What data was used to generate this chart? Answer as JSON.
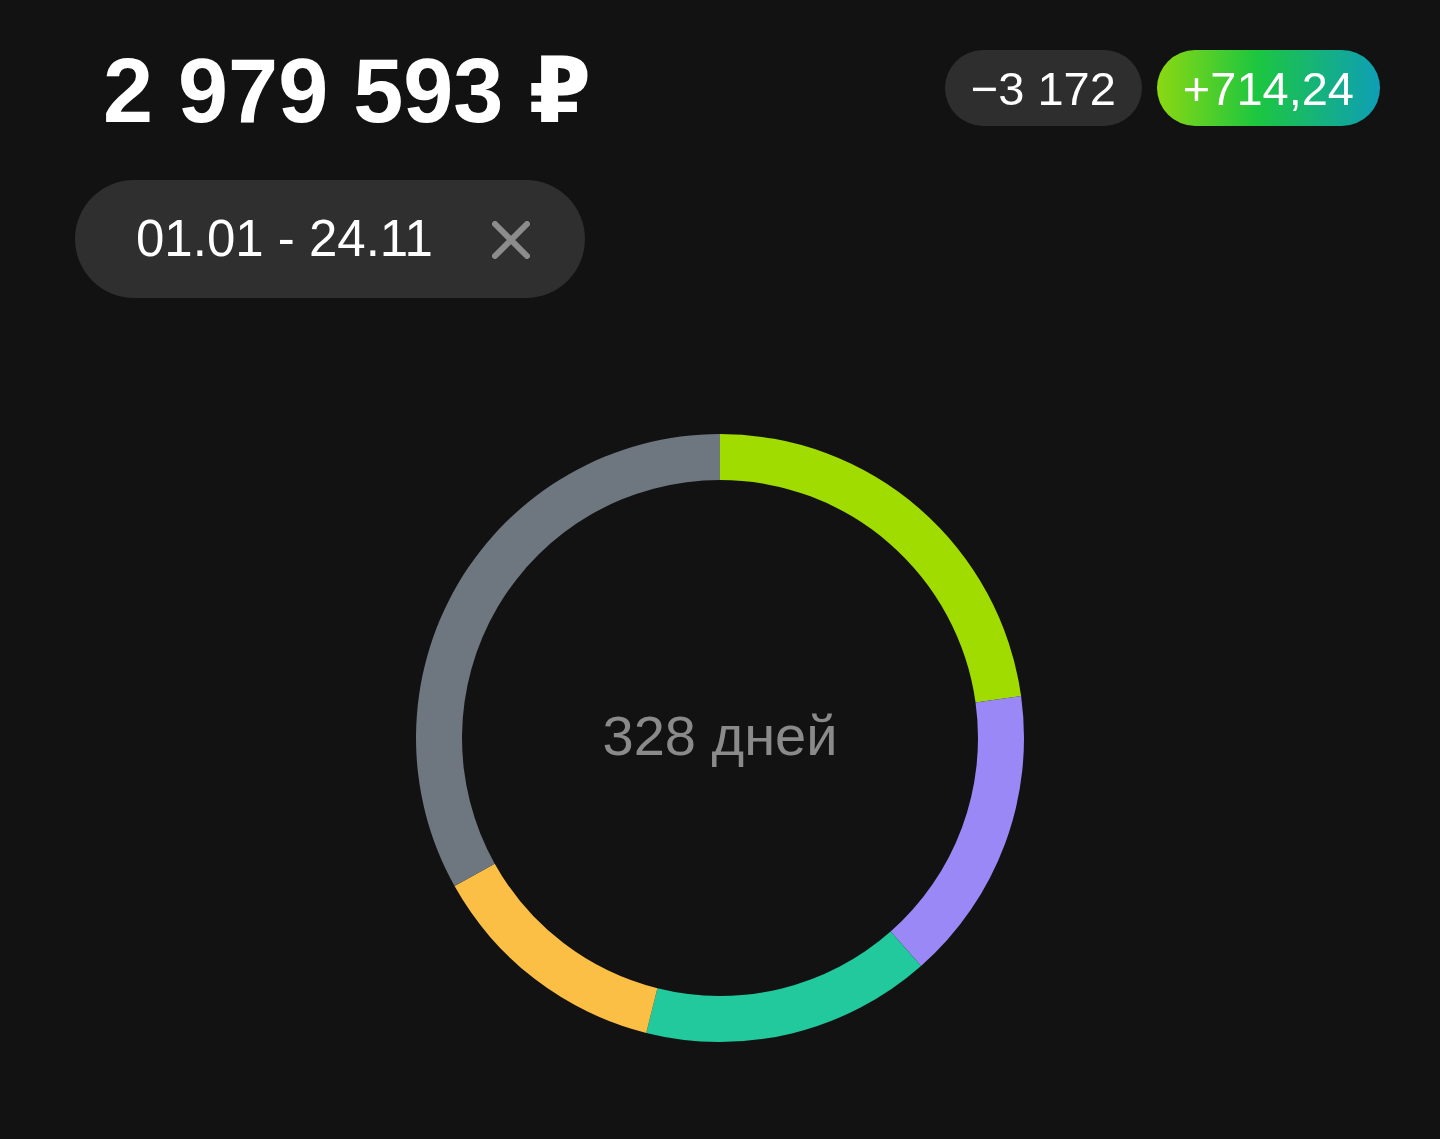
{
  "chart_data": {
    "type": "donut",
    "title": "2 979 593 ₽",
    "subtitle": "01.01 - 24.11",
    "categories": [
      null,
      null,
      null,
      null,
      null
    ],
    "values": [
      22.8,
      15.7,
      15.4,
      13.0,
      33.1
    ],
    "colors": [
      "#a0dc00",
      "#9b88f7",
      "#22c99c",
      "#fcbf45",
      "#6e7780"
    ],
    "annotations": [
      "−3 172",
      "+714,24",
      "328 дней"
    ]
  }
}
